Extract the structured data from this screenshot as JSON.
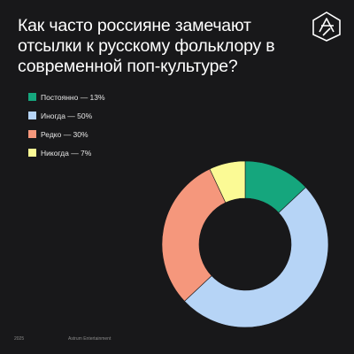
{
  "title": "Как часто россияне замечают отсылки к русскому фольклору в современной поп-культуре?",
  "logo": {
    "icon": "astrum-star-logo-icon",
    "color": "#ffffff"
  },
  "chart_data": {
    "type": "pie",
    "variant": "donut",
    "title": "Как часто россияне замечают отсылки к русскому фольклору в современной поп-культуре?",
    "legend_position": "top-left",
    "slices": [
      {
        "label": "Постоянно — 13%",
        "category": "Постоянно",
        "value": 13,
        "color": "#15a67d"
      },
      {
        "label": "Иногда — 50%",
        "category": "Иногда",
        "value": 50,
        "color": "#b6d4f6"
      },
      {
        "label": "Редко — 30%",
        "category": "Редко",
        "value": 30,
        "color": "#f5977c"
      },
      {
        "label": "Никогда — 7%",
        "category": "Никогда",
        "value": 7,
        "color": "#fbfa95"
      }
    ]
  },
  "footer": {
    "year": "2025",
    "company": "Astrum Entertainment"
  }
}
